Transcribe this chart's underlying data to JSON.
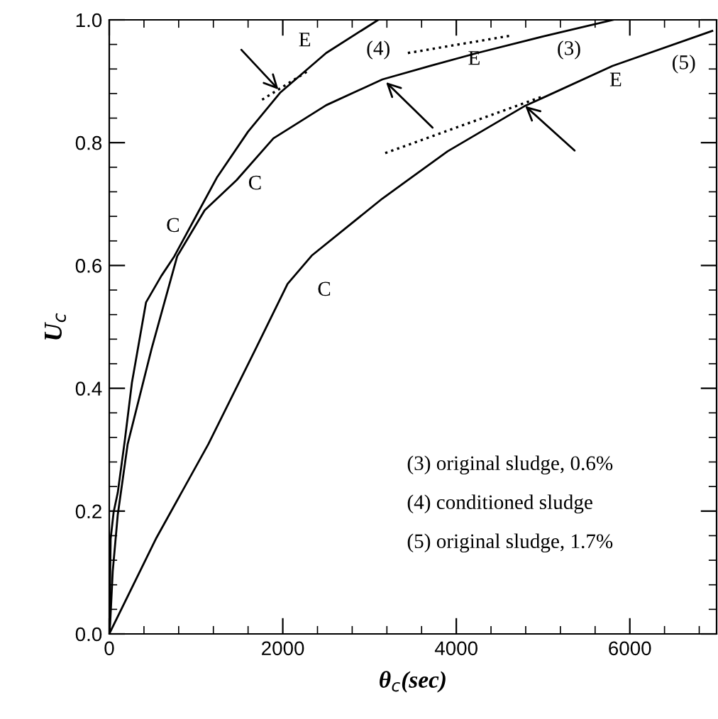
{
  "chart_data": {
    "type": "line",
    "xlabel": "θ$_{c}$(sec)",
    "ylabel": "U$_{c}$",
    "xlim": [
      0,
      7000
    ],
    "ylim": [
      0,
      1.0
    ],
    "xticks": [
      0,
      2000,
      4000,
      6000
    ],
    "yticks": [
      {
        "value": 0,
        "label": "0.0"
      },
      0.2,
      0.4,
      0.6,
      0.8,
      {
        "value": 1,
        "label": "1.0"
      }
    ],
    "grid": false,
    "legend": false,
    "marker": "none",
    "series": [
      {
        "color": "#000000",
        "line_style": "solid",
        "x": [
          0,
          5,
          16,
          50,
          98,
          180,
          261,
          424,
          600,
          750,
          995,
          1240,
          1600,
          1974,
          2500,
          3100
        ],
        "values": [
          0,
          0.038,
          0.155,
          0.198,
          0.23,
          0.316,
          0.409,
          0.54,
          0.583,
          0.615,
          0.679,
          0.743,
          0.818,
          0.882,
          0.946,
          1.0
        ]
      },
      {
        "color": "#000000",
        "line_style": "solid",
        "x": [
          0,
          10,
          40,
          98,
          212,
          489,
          783,
          1100,
          1468,
          1892,
          2500,
          3148,
          3700,
          4241,
          5000,
          5808
        ],
        "values": [
          0,
          0.016,
          0.102,
          0.194,
          0.309,
          0.465,
          0.615,
          0.69,
          0.739,
          0.807,
          0.861,
          0.903,
          0.925,
          0.946,
          0.973,
          1.0
        ]
      },
      {
        "color": "#000000",
        "line_style": "solid",
        "x": [
          0,
          538,
          1142,
          1680,
          2055,
          2333,
          3148,
          3900,
          4780,
          5800,
          6950
        ],
        "values": [
          0,
          0.155,
          0.309,
          0.462,
          0.57,
          0.616,
          0.709,
          0.786,
          0.859,
          0.925,
          0.982
        ]
      },
      {
        "color": "#000000",
        "line_style": "dotted",
        "x": [
          1762,
          2284
        ],
        "values": [
          0.87,
          0.916
        ]
      },
      {
        "color": "#000000",
        "line_style": "dotted",
        "x": [
          3442,
          4617
        ],
        "values": [
          0.946,
          0.974
        ]
      },
      {
        "color": "#000000",
        "line_style": "dotted",
        "x": [
          3181,
          4992
        ],
        "values": [
          0.783,
          0.875
        ]
      }
    ],
    "annotations": [
      "(4)",
      "(3)",
      "(5)",
      "E",
      "E",
      "E",
      "C",
      "C",
      "C",
      "(3) original sludge, 0.6%",
      "(4) conditioned sludge",
      "(5) original sludge, 1.7%"
    ]
  }
}
